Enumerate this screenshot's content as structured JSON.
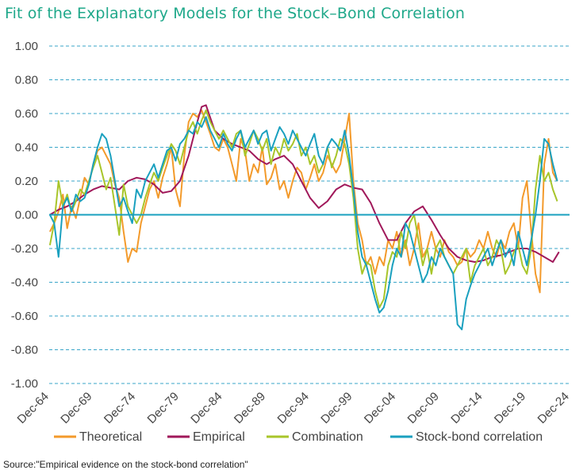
{
  "title": "Fit of the Explanatory Models for the Stock–Bond Correlation",
  "source": "Source:\"Empirical evidence on the stock-bond correlation\"",
  "colors": {
    "title": "#1fa88a",
    "grid": "#3aa6c8",
    "zero_line": "#1aa0bf"
  },
  "chart_data": {
    "type": "line",
    "title": "Fit of the Explanatory Models for the Stock–Bond Correlation",
    "xlabel": "",
    "ylabel": "",
    "ylim": [
      -1.0,
      1.0
    ],
    "xlim": [
      1964.92,
      2024.92
    ],
    "yticks": [
      "1.00",
      "0.80",
      "0.60",
      "0.40",
      "0.20",
      "0.00",
      "-0.20",
      "-0.40",
      "-0.60",
      "-0.80",
      "-1.00"
    ],
    "ytick_values": [
      1.0,
      0.8,
      0.6,
      0.4,
      0.2,
      0.0,
      -0.2,
      -0.4,
      -0.6,
      -0.8,
      -1.0
    ],
    "xticks": [
      "Dec-64",
      "Dec-69",
      "Dec-74",
      "Dec-79",
      "Dec-84",
      "Dec-89",
      "Dec-94",
      "Dec-99",
      "Dec-04",
      "Dec-09",
      "Dec-14",
      "Dec-19",
      "Dec-24"
    ],
    "xtick_values": [
      1964.92,
      1969.92,
      1974.92,
      1979.92,
      1984.92,
      1989.92,
      1994.92,
      1999.92,
      2004.92,
      2009.92,
      2014.92,
      2019.92,
      2024.92
    ],
    "grid": "horizontal dashed",
    "legend_position": "bottom",
    "series": [
      {
        "name": "Theoretical",
        "color": "#f39a2b",
        "x": [
          1965.0,
          1965.5,
          1966.0,
          1966.5,
          1967.0,
          1967.5,
          1968.0,
          1968.5,
          1969.0,
          1969.5,
          1970.0,
          1970.5,
          1971.0,
          1971.5,
          1972.0,
          1972.5,
          1973.0,
          1973.5,
          1974.0,
          1974.5,
          1975.0,
          1975.5,
          1976.0,
          1976.5,
          1977.0,
          1977.5,
          1978.0,
          1978.5,
          1979.0,
          1979.5,
          1980.0,
          1980.5,
          1981.0,
          1981.5,
          1982.0,
          1982.5,
          1983.0,
          1983.5,
          1984.0,
          1984.5,
          1985.0,
          1985.5,
          1986.0,
          1986.5,
          1987.0,
          1987.5,
          1988.0,
          1988.5,
          1989.0,
          1989.5,
          1990.0,
          1990.5,
          1991.0,
          1991.5,
          1992.0,
          1992.5,
          1993.0,
          1993.5,
          1994.0,
          1994.5,
          1995.0,
          1995.5,
          1996.0,
          1996.5,
          1997.0,
          1997.5,
          1998.0,
          1998.5,
          1999.0,
          1999.5,
          2000.0,
          2000.5,
          2001.0,
          2001.5,
          2002.0,
          2002.5,
          2003.0,
          2003.5,
          2004.0,
          2004.5,
          2005.0,
          2005.5,
          2006.0,
          2006.5,
          2007.0,
          2007.5,
          2008.0,
          2008.5,
          2009.0,
          2009.5,
          2010.0,
          2010.5,
          2011.0,
          2011.5,
          2012.0,
          2012.5,
          2013.0,
          2013.5,
          2014.0,
          2014.5,
          2015.0,
          2015.5,
          2016.0,
          2016.5,
          2017.0,
          2017.5,
          2018.0,
          2018.5,
          2019.0,
          2019.5,
          2020.0,
          2020.5,
          2021.0,
          2021.5,
          2022.0,
          2022.5,
          2023.0,
          2023.5
        ],
        "y": [
          -0.1,
          -0.05,
          0.02,
          0.12,
          -0.08,
          0.05,
          -0.02,
          0.1,
          0.22,
          0.18,
          0.3,
          0.38,
          0.4,
          0.35,
          0.3,
          0.18,
          0.1,
          -0.1,
          -0.28,
          -0.2,
          -0.22,
          -0.05,
          0.05,
          0.15,
          0.2,
          0.1,
          0.22,
          0.3,
          0.4,
          0.15,
          0.05,
          0.35,
          0.55,
          0.6,
          0.58,
          0.62,
          0.55,
          0.48,
          0.4,
          0.38,
          0.45,
          0.4,
          0.3,
          0.2,
          0.45,
          0.38,
          0.2,
          0.3,
          0.25,
          0.4,
          0.18,
          0.22,
          0.3,
          0.15,
          0.2,
          0.1,
          0.2,
          0.28,
          0.25,
          0.15,
          0.22,
          0.3,
          0.2,
          0.25,
          0.35,
          0.3,
          0.25,
          0.3,
          0.45,
          0.6,
          0.2,
          -0.05,
          -0.15,
          -0.3,
          -0.25,
          -0.35,
          -0.25,
          -0.3,
          -0.15,
          -0.2,
          -0.1,
          -0.25,
          -0.15,
          -0.3,
          -0.2,
          -0.05,
          -0.25,
          -0.2,
          -0.1,
          -0.2,
          -0.25,
          -0.15,
          -0.22,
          -0.25,
          -0.3,
          -0.28,
          -0.2,
          -0.25,
          -0.22,
          -0.15,
          -0.2,
          -0.1,
          -0.2,
          -0.25,
          -0.15,
          -0.2,
          -0.1,
          -0.05,
          -0.2,
          0.1,
          0.2,
          -0.1,
          -0.35,
          -0.46,
          0.3,
          0.45,
          0.25,
          0.2
        ]
      },
      {
        "name": "Empirical",
        "color": "#a0185a",
        "x": [
          1965.0,
          1966.0,
          1967.0,
          1968.0,
          1969.0,
          1970.0,
          1971.0,
          1972.0,
          1973.0,
          1974.0,
          1975.0,
          1976.0,
          1977.0,
          1978.0,
          1979.0,
          1980.0,
          1981.0,
          1982.0,
          1982.5,
          1983.0,
          1984.0,
          1985.0,
          1986.0,
          1987.0,
          1988.0,
          1989.0,
          1990.0,
          1991.0,
          1992.0,
          1993.0,
          1994.0,
          1995.0,
          1996.0,
          1997.0,
          1998.0,
          1999.0,
          2000.0,
          2001.0,
          2002.0,
          2003.0,
          2004.0,
          2005.0,
          2006.0,
          2007.0,
          2008.0,
          2009.0,
          2010.0,
          2011.0,
          2012.0,
          2013.0,
          2014.0,
          2015.0,
          2016.0,
          2017.0,
          2018.0,
          2019.0,
          2020.0,
          2021.0,
          2022.0,
          2023.0,
          2023.7
        ],
        "y": [
          0.0,
          0.03,
          0.05,
          0.08,
          0.12,
          0.15,
          0.17,
          0.16,
          0.15,
          0.2,
          0.22,
          0.21,
          0.18,
          0.13,
          0.14,
          0.2,
          0.35,
          0.55,
          0.64,
          0.65,
          0.5,
          0.45,
          0.42,
          0.4,
          0.38,
          0.33,
          0.3,
          0.33,
          0.35,
          0.3,
          0.2,
          0.1,
          0.04,
          0.08,
          0.15,
          0.18,
          0.16,
          0.15,
          0.07,
          -0.05,
          -0.15,
          -0.15,
          -0.05,
          0.02,
          0.05,
          -0.03,
          -0.12,
          -0.2,
          -0.25,
          -0.27,
          -0.28,
          -0.27,
          -0.25,
          -0.24,
          -0.22,
          -0.2,
          -0.2,
          -0.22,
          -0.25,
          -0.28,
          -0.22
        ]
      },
      {
        "name": "Combination",
        "color": "#a8c52a",
        "x": [
          1965.0,
          1965.5,
          1966.0,
          1966.5,
          1967.0,
          1967.5,
          1968.0,
          1968.5,
          1969.0,
          1969.5,
          1970.0,
          1970.5,
          1971.0,
          1971.5,
          1972.0,
          1972.5,
          1973.0,
          1973.5,
          1974.0,
          1974.5,
          1975.0,
          1975.5,
          1976.0,
          1976.5,
          1977.0,
          1977.5,
          1978.0,
          1978.5,
          1979.0,
          1979.5,
          1980.0,
          1980.5,
          1981.0,
          1981.5,
          1982.0,
          1982.5,
          1983.0,
          1983.5,
          1984.0,
          1984.5,
          1985.0,
          1985.5,
          1986.0,
          1986.5,
          1987.0,
          1987.5,
          1988.0,
          1988.5,
          1989.0,
          1989.5,
          1990.0,
          1990.5,
          1991.0,
          1991.5,
          1992.0,
          1992.5,
          1993.0,
          1993.5,
          1994.0,
          1994.5,
          1995.0,
          1995.5,
          1996.0,
          1996.5,
          1997.0,
          1997.5,
          1998.0,
          1998.5,
          1999.0,
          1999.5,
          2000.0,
          2000.5,
          2001.0,
          2001.5,
          2002.0,
          2002.5,
          2003.0,
          2003.5,
          2004.0,
          2004.5,
          2005.0,
          2005.5,
          2006.0,
          2006.5,
          2007.0,
          2007.5,
          2008.0,
          2008.5,
          2009.0,
          2009.5,
          2010.0,
          2010.5,
          2011.0,
          2011.5,
          2012.0,
          2012.5,
          2013.0,
          2013.5,
          2014.0,
          2014.5,
          2015.0,
          2015.5,
          2016.0,
          2016.5,
          2017.0,
          2017.5,
          2018.0,
          2018.5,
          2019.0,
          2019.5,
          2020.0,
          2020.5,
          2021.0,
          2021.5,
          2022.0,
          2022.5,
          2023.0,
          2023.5
        ],
        "y": [
          -0.18,
          -0.05,
          0.2,
          0.05,
          0.12,
          0.02,
          0.08,
          0.15,
          0.12,
          0.2,
          0.28,
          0.35,
          0.25,
          0.15,
          0.22,
          0.05,
          -0.12,
          0.18,
          0.05,
          0.0,
          -0.05,
          0.0,
          0.1,
          0.18,
          0.25,
          0.2,
          0.28,
          0.35,
          0.42,
          0.38,
          0.3,
          0.4,
          0.5,
          0.55,
          0.48,
          0.56,
          0.62,
          0.55,
          0.5,
          0.45,
          0.5,
          0.45,
          0.4,
          0.48,
          0.5,
          0.35,
          0.42,
          0.5,
          0.45,
          0.38,
          0.45,
          0.3,
          0.4,
          0.35,
          0.45,
          0.38,
          0.42,
          0.48,
          0.35,
          0.4,
          0.3,
          0.35,
          0.25,
          0.3,
          0.4,
          0.28,
          0.35,
          0.45,
          0.42,
          0.3,
          0.1,
          -0.2,
          -0.35,
          -0.28,
          -0.3,
          -0.45,
          -0.55,
          -0.5,
          -0.3,
          -0.22,
          -0.25,
          -0.1,
          -0.2,
          -0.05,
          0.0,
          -0.15,
          -0.3,
          -0.2,
          -0.35,
          -0.2,
          -0.15,
          -0.25,
          -0.3,
          -0.35,
          -0.3,
          -0.25,
          -0.2,
          -0.4,
          -0.3,
          -0.25,
          -0.2,
          -0.3,
          -0.25,
          -0.15,
          -0.2,
          -0.35,
          -0.3,
          -0.22,
          -0.18,
          -0.3,
          -0.35,
          -0.2,
          0.15,
          0.35,
          0.2,
          0.25,
          0.15,
          0.08
        ]
      },
      {
        "name": "Stock-bond correlation",
        "color": "#1aa0bf",
        "x": [
          1965.0,
          1965.5,
          1966.0,
          1966.5,
          1967.0,
          1967.5,
          1968.0,
          1968.5,
          1969.0,
          1969.5,
          1970.0,
          1970.5,
          1971.0,
          1971.5,
          1972.0,
          1972.5,
          1973.0,
          1973.5,
          1974.0,
          1974.5,
          1975.0,
          1975.5,
          1976.0,
          1976.5,
          1977.0,
          1977.5,
          1978.0,
          1978.5,
          1979.0,
          1979.5,
          1980.0,
          1980.5,
          1981.0,
          1981.5,
          1982.0,
          1982.5,
          1983.0,
          1983.5,
          1984.0,
          1984.5,
          1985.0,
          1985.5,
          1986.0,
          1986.5,
          1987.0,
          1987.5,
          1988.0,
          1988.5,
          1989.0,
          1989.5,
          1990.0,
          1990.5,
          1991.0,
          1991.5,
          1992.0,
          1992.5,
          1993.0,
          1993.5,
          1994.0,
          1994.5,
          1995.0,
          1995.5,
          1996.0,
          1996.5,
          1997.0,
          1997.5,
          1998.0,
          1998.5,
          1999.0,
          1999.5,
          2000.0,
          2000.5,
          2001.0,
          2001.5,
          2002.0,
          2002.5,
          2003.0,
          2003.5,
          2004.0,
          2004.5,
          2005.0,
          2005.5,
          2006.0,
          2006.5,
          2007.0,
          2007.5,
          2008.0,
          2008.5,
          2009.0,
          2009.5,
          2010.0,
          2010.5,
          2011.0,
          2011.5,
          2012.0,
          2012.5,
          2013.0,
          2013.5,
          2014.0,
          2014.5,
          2015.0,
          2015.5,
          2016.0,
          2016.5,
          2017.0,
          2017.5,
          2018.0,
          2018.5,
          2019.0,
          2019.5,
          2020.0,
          2020.5,
          2021.0,
          2021.5,
          2022.0,
          2022.5,
          2023.0,
          2023.5
        ],
        "y": [
          0.0,
          -0.05,
          -0.25,
          0.05,
          0.1,
          0.02,
          0.12,
          0.08,
          0.1,
          0.18,
          0.3,
          0.4,
          0.48,
          0.45,
          0.35,
          0.2,
          0.05,
          0.1,
          0.02,
          -0.05,
          0.15,
          0.1,
          0.2,
          0.25,
          0.3,
          0.22,
          0.3,
          0.38,
          0.4,
          0.32,
          0.42,
          0.45,
          0.5,
          0.48,
          0.55,
          0.52,
          0.58,
          0.5,
          0.45,
          0.4,
          0.48,
          0.42,
          0.38,
          0.45,
          0.5,
          0.4,
          0.45,
          0.5,
          0.42,
          0.48,
          0.5,
          0.38,
          0.45,
          0.52,
          0.48,
          0.42,
          0.5,
          0.45,
          0.4,
          0.35,
          0.42,
          0.48,
          0.35,
          0.3,
          0.4,
          0.45,
          0.42,
          0.38,
          0.5,
          0.35,
          0.15,
          -0.1,
          -0.25,
          -0.3,
          -0.4,
          -0.5,
          -0.58,
          -0.55,
          -0.45,
          -0.3,
          -0.2,
          -0.25,
          -0.05,
          -0.1,
          -0.2,
          -0.3,
          -0.4,
          -0.35,
          -0.25,
          -0.3,
          -0.2,
          -0.25,
          -0.3,
          -0.35,
          -0.65,
          -0.68,
          -0.5,
          -0.42,
          -0.35,
          -0.3,
          -0.25,
          -0.2,
          -0.3,
          -0.22,
          -0.15,
          -0.25,
          -0.2,
          -0.3,
          -0.1,
          -0.2,
          -0.3,
          -0.15,
          0.0,
          0.2,
          0.45,
          0.42,
          0.3,
          0.2
        ]
      }
    ]
  }
}
